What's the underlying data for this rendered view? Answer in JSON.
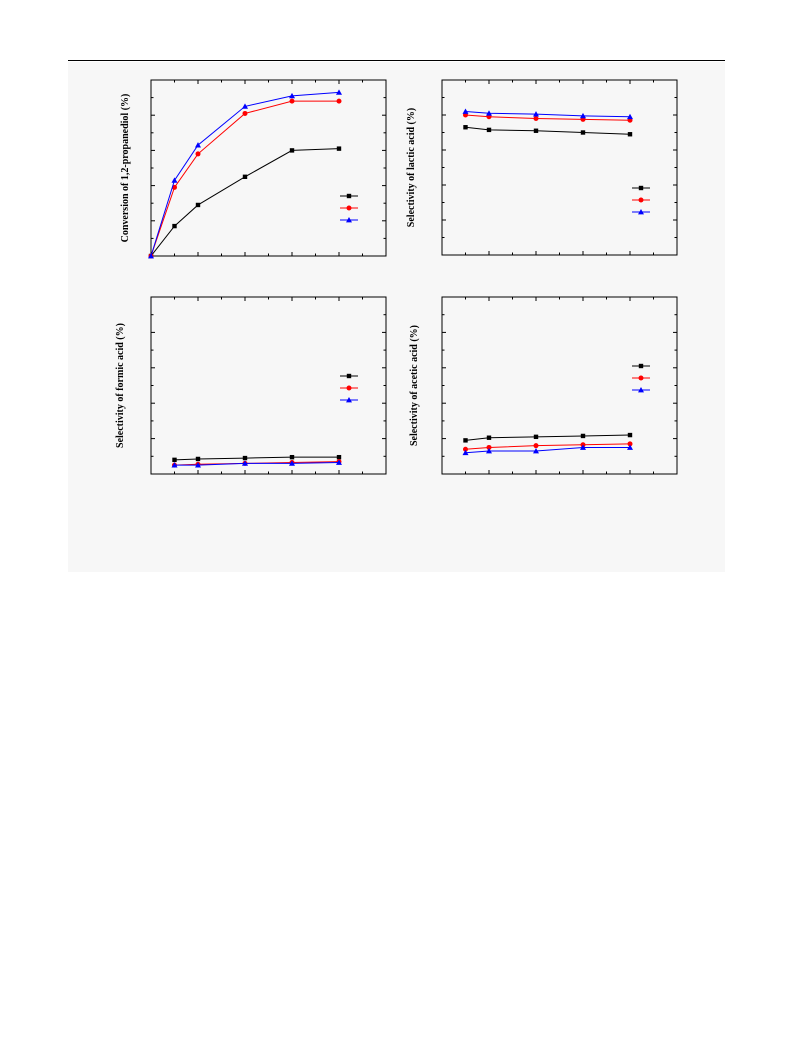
{
  "colors": {
    "series_1": "#000000",
    "series_2": "#ff0000",
    "series_3": "#0000ff"
  },
  "chart_data": [
    {
      "type": "line",
      "ylabel": "Conversion of 1,2-propanediol (%)",
      "xlim": [
        0,
        10
      ],
      "ylim": [
        0,
        100
      ],
      "grid": false,
      "legend_position": "right",
      "series": [
        {
          "color": "#000000",
          "marker": "square",
          "x": [
            0,
            1,
            2,
            4,
            6,
            8
          ],
          "y": [
            0,
            17,
            29,
            45,
            60,
            61
          ]
        },
        {
          "color": "#ff0000",
          "marker": "circle",
          "x": [
            0,
            1,
            2,
            4,
            6,
            8
          ],
          "y": [
            0,
            39,
            58,
            81,
            88,
            88
          ]
        },
        {
          "color": "#0000ff",
          "marker": "triangle",
          "x": [
            0,
            1,
            2,
            4,
            6,
            8
          ],
          "y": [
            0,
            43,
            63,
            85,
            91,
            93
          ]
        }
      ]
    },
    {
      "type": "line",
      "ylabel": "Selectivity of lactic acid (%)",
      "xlim": [
        0,
        10
      ],
      "ylim": [
        0,
        100
      ],
      "grid": false,
      "legend_position": "right",
      "series": [
        {
          "color": "#000000",
          "marker": "square",
          "x": [
            1,
            2,
            4,
            6,
            8
          ],
          "y": [
            73,
            71.5,
            71,
            70,
            69
          ]
        },
        {
          "color": "#ff0000",
          "marker": "circle",
          "x": [
            1,
            2,
            4,
            6,
            8
          ],
          "y": [
            80,
            79,
            78,
            77.5,
            77
          ]
        },
        {
          "color": "#0000ff",
          "marker": "triangle",
          "x": [
            1,
            2,
            4,
            6,
            8
          ],
          "y": [
            82,
            81,
            80.5,
            79.5,
            79
          ]
        }
      ]
    },
    {
      "type": "line",
      "ylabel": "Selectivity of formic acid (%)",
      "xlim": [
        0,
        10
      ],
      "ylim": [
        0,
        100
      ],
      "grid": false,
      "legend_position": "right",
      "series": [
        {
          "color": "#000000",
          "marker": "square",
          "x": [
            1,
            2,
            4,
            6,
            8
          ],
          "y": [
            8,
            8.5,
            9,
            9.5,
            9.5
          ]
        },
        {
          "color": "#ff0000",
          "marker": "circle",
          "x": [
            1,
            2,
            4,
            6,
            8
          ],
          "y": [
            5,
            5.5,
            6,
            6.5,
            7
          ]
        },
        {
          "color": "#0000ff",
          "marker": "triangle",
          "x": [
            1,
            2,
            4,
            6,
            8
          ],
          "y": [
            5,
            5,
            6,
            6,
            6.5
          ]
        }
      ]
    },
    {
      "type": "line",
      "ylabel": "Selectivity of acetic acid (%)",
      "xlim": [
        0,
        10
      ],
      "ylim": [
        0,
        100
      ],
      "grid": false,
      "legend_position": "right",
      "series": [
        {
          "color": "#000000",
          "marker": "square",
          "x": [
            1,
            2,
            4,
            6,
            8
          ],
          "y": [
            19,
            20.5,
            21,
            21.5,
            22
          ]
        },
        {
          "color": "#ff0000",
          "marker": "circle",
          "x": [
            1,
            2,
            4,
            6,
            8
          ],
          "y": [
            14,
            15,
            16,
            16.5,
            17
          ]
        },
        {
          "color": "#0000ff",
          "marker": "triangle",
          "x": [
            1,
            2,
            4,
            6,
            8
          ],
          "y": [
            12,
            13,
            13,
            15,
            15
          ]
        }
      ]
    }
  ]
}
